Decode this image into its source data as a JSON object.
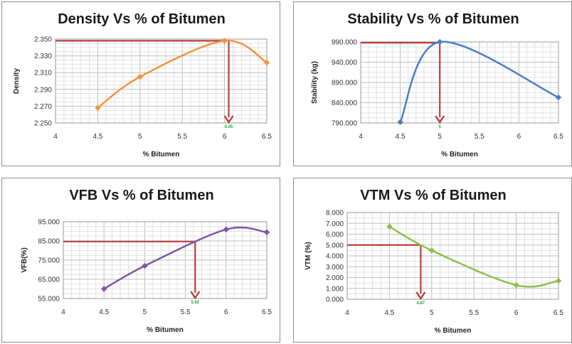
{
  "chart_data": [
    {
      "type": "line",
      "title": "Density Vs % of Bitumen",
      "xlabel": "% Bitumen",
      "ylabel": "Density",
      "xlim": [
        4,
        6.5
      ],
      "ylim": [
        2.25,
        2.35
      ],
      "xticks": [
        "4",
        "4.5",
        "5",
        "5.5",
        "6",
        "6.5"
      ],
      "yticks": [
        "2.250",
        "2.270",
        "2.290",
        "2.310",
        "2.330",
        "2.350"
      ],
      "grid": true,
      "color": "#f7923a",
      "marker": "diamond",
      "series": [
        {
          "x": [
            4.5,
            5,
            6,
            6.5
          ],
          "values": [
            2.268,
            2.305,
            2.348,
            2.322
          ]
        }
      ],
      "annotation": {
        "x": 6.05,
        "y": 2.348,
        "label": "6.05"
      }
    },
    {
      "type": "line",
      "title": "Stability Vs % of Bitumen",
      "xlabel": "% Bitumen",
      "ylabel": "Stability (kg)",
      "xlim": [
        4,
        6.5
      ],
      "ylim": [
        790,
        990
      ],
      "xticks": [
        "4",
        "4.5",
        "5",
        "5.5",
        "6",
        "6.5"
      ],
      "yticks": [
        "790.000",
        "840.000",
        "890.000",
        "940.000",
        "990.000"
      ],
      "grid": true,
      "color": "#4a7fc8",
      "marker": "diamond",
      "series": [
        {
          "x": [
            4.5,
            5,
            6.5
          ],
          "values": [
            792,
            990,
            853
          ]
        }
      ],
      "annotation": {
        "x": 5,
        "y": 988,
        "label": "5"
      }
    },
    {
      "type": "line",
      "title": "VFB Vs % of Bitumen",
      "xlabel": "% Bitumen",
      "ylabel": "VFB(%)",
      "xlim": [
        4,
        6.5
      ],
      "ylim": [
        55,
        95
      ],
      "xticks": [
        "4",
        "4.5",
        "5",
        "5.5",
        "6",
        "6.5"
      ],
      "yticks": [
        "55.000",
        "65.000",
        "75.000",
        "85.000",
        "95.000"
      ],
      "grid": true,
      "color": "#7a54a8",
      "marker": "diamond",
      "series": [
        {
          "x": [
            4.5,
            5,
            6,
            6.5
          ],
          "values": [
            60,
            72,
            91,
            89.5
          ]
        }
      ],
      "annotation": {
        "x": 5.62,
        "y": 84.7,
        "label": "5.62"
      }
    },
    {
      "type": "line",
      "title": "VTM Vs % of Bitumen",
      "xlabel": "% Bitumen",
      "ylabel": "VTM (%)",
      "xlim": [
        4,
        6.5
      ],
      "ylim": [
        0,
        8
      ],
      "xticks": [
        "4",
        "4.5",
        "5",
        "5.5",
        "6",
        "6.5"
      ],
      "yticks": [
        "0.000",
        "1.000",
        "2.000",
        "3.000",
        "4.000",
        "5.000",
        "6.000",
        "7.000",
        "8.000"
      ],
      "grid": true,
      "color": "#8cbf4a",
      "marker": "diamond",
      "series": [
        {
          "x": [
            4.5,
            5,
            6,
            6.5
          ],
          "values": [
            6.7,
            4.5,
            1.3,
            1.7
          ]
        }
      ],
      "annotation": {
        "x": 4.87,
        "y": 5.0,
        "label": "4.87"
      }
    }
  ]
}
